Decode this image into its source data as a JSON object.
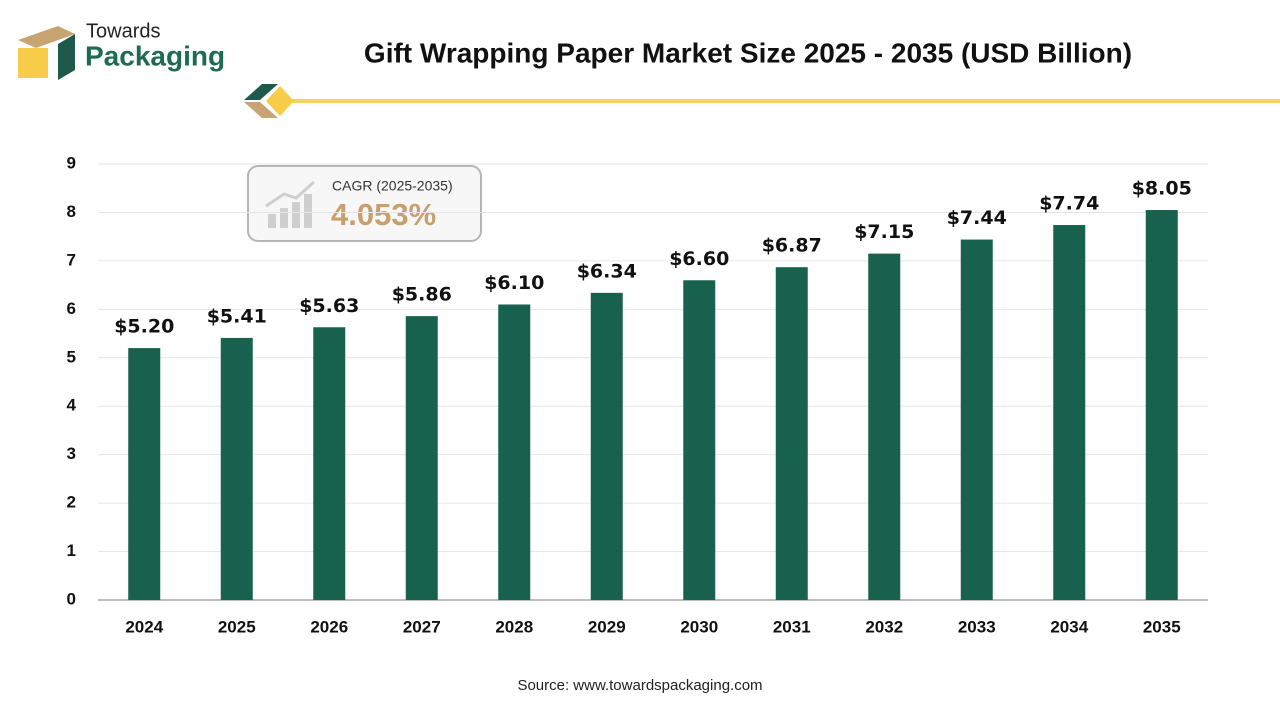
{
  "logo": {
    "line1": "Towards",
    "line2": "Packaging"
  },
  "chart_data": {
    "type": "bar",
    "title": "Gift Wrapping Paper Market Size 2025 - 2035 (USD Billion)",
    "categories": [
      "2024",
      "2025",
      "2026",
      "2027",
      "2028",
      "2029",
      "2030",
      "2031",
      "2032",
      "2033",
      "2034",
      "2035"
    ],
    "values": [
      5.2,
      5.41,
      5.63,
      5.86,
      6.1,
      6.34,
      6.6,
      6.87,
      7.15,
      7.44,
      7.74,
      8.05
    ],
    "value_labels": [
      "$5.20",
      "$5.41",
      "$5.63",
      "$5.86",
      "$6.10",
      "$6.34",
      "$6.60",
      "$6.87",
      "$7.15",
      "$7.44",
      "$7.74",
      "$8.05"
    ],
    "color": "#18614f",
    "ylim": [
      0,
      9
    ],
    "yticks": [
      0,
      1,
      2,
      3,
      4,
      5,
      6,
      7,
      8,
      9
    ],
    "grid": true,
    "annotation": {
      "label": "CAGR (2025-2035)",
      "value": "4.053%"
    },
    "source": "Source: www.towardspackaging.com"
  }
}
